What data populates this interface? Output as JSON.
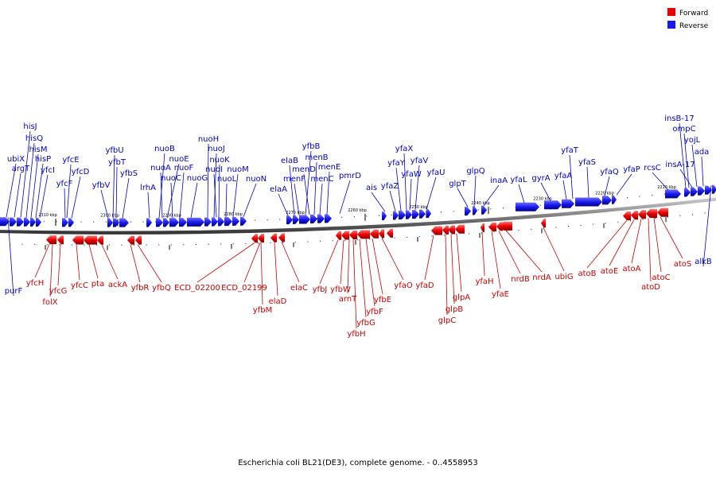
{
  "legend": {
    "forward": {
      "label": "Forward",
      "color": "#ee0000"
    },
    "reverse": {
      "label": "Reverse",
      "color": "#1a1aee"
    }
  },
  "caption": "Escherichia coli BL21(DE3), complete genome. - 0..4558953",
  "ticks": [
    "2310 kbp",
    "2300 kbp",
    "2290 kbp",
    "2280 kbp",
    "2270 kbp",
    "2260 kbp",
    "2250 kbp",
    "2240 kbp",
    "2230 kbp",
    "2220 kbp",
    "2210 kbp"
  ],
  "reverse_genes": [
    "ubiX",
    "argT",
    "hisJ",
    "hisQ",
    "hisM",
    "hisP",
    "yfcI",
    "yfcF",
    "yfcE",
    "yfcD",
    "yfbV",
    "yfbU",
    "yfbT",
    "yfbS",
    "lrhA",
    "nuoB",
    "nuoA",
    "nuoE",
    "nuoC",
    "nuoF",
    "nuoG",
    "nuoH",
    "nuoJ",
    "nuoK",
    "nuoI",
    "nuoL",
    "nuoM",
    "nuoN",
    "elaA",
    "elaB",
    "menF",
    "yfbB",
    "menD",
    "menB",
    "menC",
    "menE",
    "pmrD",
    "ais",
    "yfaZ",
    "yfaY",
    "yfaX",
    "yfaW",
    "yfaV",
    "yfaU",
    "glpT",
    "glpQ",
    "inaA",
    "yfaL",
    "gyrA",
    "yfaA",
    "yfaT",
    "yfaS",
    "yfaQ",
    "yfaP",
    "rcsC",
    "insA-17",
    "insB-17",
    "ompC",
    "yojL",
    "ada",
    "purF",
    "alkB"
  ],
  "forward_genes": [
    "yfcH",
    "folX",
    "yfcG",
    "yfcC",
    "pta",
    "ackA",
    "yfbR",
    "yfbQ",
    "ECD_02200",
    "ECD_02199",
    "yfbM",
    "elaD",
    "elaC",
    "yfbJ",
    "yfbW",
    "arnT",
    "yfbH",
    "yfbG",
    "yfbF",
    "yfbE",
    "yfaO",
    "yfaD",
    "glpC",
    "glpB",
    "glpA",
    "yfaH",
    "yfaE",
    "nrdB",
    "nrdA",
    "ubiG",
    "atoB",
    "atoE",
    "atoA",
    "atoD",
    "atoC",
    "atoS"
  ]
}
